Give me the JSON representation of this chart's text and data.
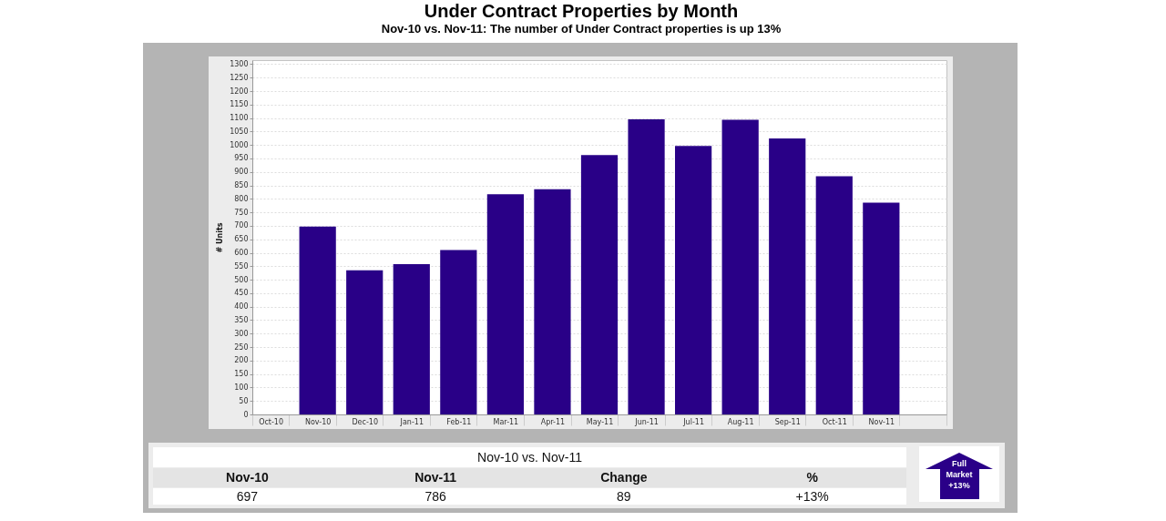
{
  "chart_data": {
    "type": "bar",
    "title": "Under Contract Properties by Month",
    "subtitle": "Nov-10 vs. Nov-11: The number of Under Contract properties is up 13%",
    "ylabel": "# Units",
    "categories": [
      "Oct-10",
      "Nov-10",
      "Dec-10",
      "Jan-11",
      "Feb-11",
      "Mar-11",
      "Apr-11",
      "May-11",
      "Jun-11",
      "Jul-11",
      "Aug-11",
      "Sep-11",
      "Oct-11",
      "Nov-11",
      null
    ],
    "values": [
      null,
      697,
      535,
      558,
      610,
      817,
      836,
      963,
      1095,
      996,
      1094,
      1024,
      884,
      786,
      null
    ],
    "color": "#290087",
    "ylim": [
      0,
      1315
    ],
    "yticks": [
      0,
      50,
      100,
      150,
      200,
      250,
      300,
      350,
      400,
      450,
      500,
      550,
      600,
      650,
      700,
      750,
      800,
      850,
      900,
      950,
      1000,
      1050,
      1100,
      1150,
      1200,
      1250,
      1300
    ],
    "grid": "y",
    "annotations": [
      "Nov-10 vs. Nov-11",
      "Nov-10",
      "Nov-11",
      "Change",
      "%",
      "697",
      "786",
      "89",
      "+13%",
      "Full Market +13%"
    ]
  }
}
